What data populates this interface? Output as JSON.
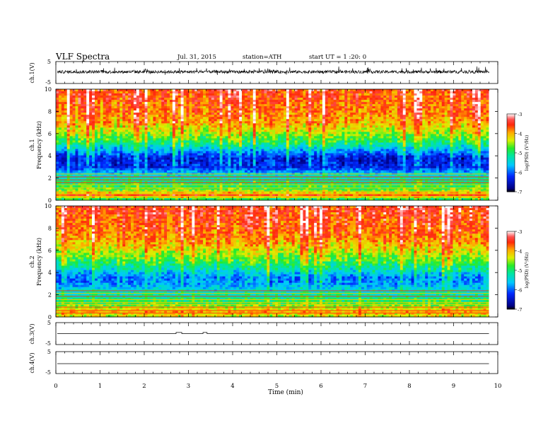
{
  "header": {
    "title": "VLF Spectra",
    "date": "Jul. 31, 2015",
    "station": "station=ATH",
    "start": "start UT = 1 :20: 0"
  },
  "chart_data": [
    {
      "type": "line",
      "panel": "ch1-waveform",
      "ylabel": "ch.1(V)",
      "ylim": [
        -5,
        5
      ],
      "yticks": [
        "5",
        "-5"
      ],
      "x_end_min": 9.8,
      "note": "dense noisy waveform centred near ~0.3 V, amplitude ~±1 V"
    },
    {
      "type": "heatmap",
      "panel": "ch1-spectrogram",
      "ylabel": [
        "ch.1",
        "Frequency (kHz)"
      ],
      "ylim": [
        0,
        10
      ],
      "yticks": [
        "0",
        "2",
        "4",
        "6",
        "8",
        "10"
      ],
      "x_end_min": 9.8,
      "colorbar": {
        "label": "log(PSD) (V²/Hz)",
        "range": [
          -7,
          -3
        ],
        "ticks": [
          "-3",
          "-4",
          "-5",
          "-6",
          "-7"
        ]
      },
      "profile": [
        {
          "f": 0.0,
          "v": -5.2
        },
        {
          "f": 0.5,
          "v": -3.6
        },
        {
          "f": 0.8,
          "v": -4.6
        },
        {
          "f": 1.5,
          "v": -5.0
        },
        {
          "f": 2.2,
          "v": -5.4
        },
        {
          "f": 3.0,
          "v": -6.3
        },
        {
          "f": 3.8,
          "v": -6.4
        },
        {
          "f": 4.5,
          "v": -5.7
        },
        {
          "f": 5.2,
          "v": -5.0
        },
        {
          "f": 6.0,
          "v": -4.5
        },
        {
          "f": 7.0,
          "v": -4.0
        },
        {
          "f": 8.0,
          "v": -3.8
        },
        {
          "f": 10.0,
          "v": -3.6
        }
      ]
    },
    {
      "type": "heatmap",
      "panel": "ch2-spectrogram",
      "ylabel": [
        "ch.2",
        "Frequency (kHz)"
      ],
      "ylim": [
        0,
        10
      ],
      "yticks": [
        "0",
        "2",
        "4",
        "6",
        "8",
        "10"
      ],
      "x_end_min": 9.8,
      "colorbar": {
        "label": "log(PSD) (V²/Hz)",
        "range": [
          -7,
          -3
        ],
        "ticks": [
          "-3",
          "-4",
          "-5",
          "-6",
          "-7"
        ]
      },
      "profile": [
        {
          "f": 0.0,
          "v": -4.4
        },
        {
          "f": 0.5,
          "v": -4.0
        },
        {
          "f": 1.0,
          "v": -4.6
        },
        {
          "f": 1.5,
          "v": -5.0
        },
        {
          "f": 2.2,
          "v": -5.3
        },
        {
          "f": 3.0,
          "v": -5.8
        },
        {
          "f": 3.5,
          "v": -5.9
        },
        {
          "f": 4.3,
          "v": -5.3
        },
        {
          "f": 5.2,
          "v": -4.7
        },
        {
          "f": 6.0,
          "v": -4.3
        },
        {
          "f": 7.0,
          "v": -3.9
        },
        {
          "f": 8.0,
          "v": -3.7
        },
        {
          "f": 10.0,
          "v": -3.5
        }
      ]
    },
    {
      "type": "line",
      "panel": "ch3-waveform",
      "ylabel": "ch.3(V)",
      "ylim": [
        -5,
        5
      ],
      "yticks": [
        "5",
        "-5"
      ],
      "x_end_min": 9.8,
      "baseline": 0.0,
      "bumps": [
        {
          "x0": 2.72,
          "x1": 2.85,
          "v": 0.5
        },
        {
          "x0": 3.33,
          "x1": 3.42,
          "v": 0.5
        }
      ]
    },
    {
      "type": "line",
      "panel": "ch4-waveform",
      "ylabel": "ch.4(V)",
      "ylim": [
        -5,
        5
      ],
      "yticks": [
        "5",
        "-5"
      ],
      "x_end_min": 9.8,
      "baseline": -0.5
    }
  ],
  "xaxis": {
    "label": "Time (min)",
    "range": [
      0,
      10
    ],
    "ticks": [
      "0",
      "1",
      "2",
      "3",
      "4",
      "5",
      "6",
      "7",
      "8",
      "9",
      "10"
    ]
  },
  "colors": {
    "lowest": "#000080",
    "highest": "#ff2a0a",
    "axis": "#000000"
  }
}
